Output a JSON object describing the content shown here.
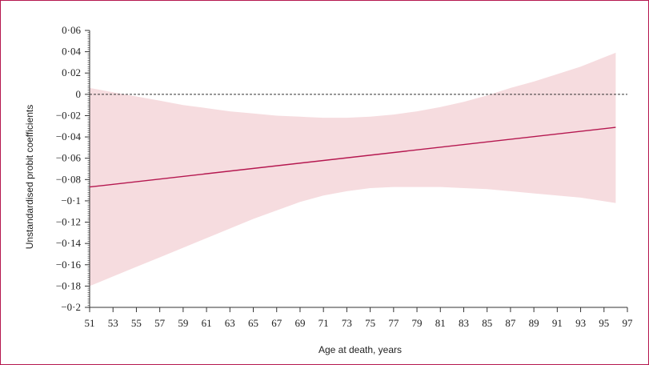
{
  "chart_data": {
    "type": "line",
    "title": "",
    "xlabel": "Age at death, years",
    "ylabel": "Unstandardised probit coefficients",
    "xlim": [
      51,
      97
    ],
    "ylim": [
      -0.2,
      0.06
    ],
    "xticks": [
      51,
      53,
      55,
      57,
      59,
      61,
      63,
      65,
      67,
      69,
      71,
      73,
      75,
      77,
      79,
      81,
      83,
      85,
      87,
      89,
      91,
      93,
      95,
      97
    ],
    "xtick_labels": [
      "51",
      "53",
      "55",
      "57",
      "59",
      "61",
      "63",
      "65",
      "67",
      "69",
      "71",
      "73",
      "75",
      "77",
      "79",
      "81",
      "83",
      "85",
      "87",
      "89",
      "91",
      "93",
      "95",
      "97"
    ],
    "yticks": [
      0.06,
      0.04,
      0.02,
      0,
      -0.02,
      -0.04,
      -0.06,
      -0.08,
      -0.1,
      -0.12,
      -0.14,
      -0.16,
      -0.18,
      -0.2
    ],
    "ytick_labels": [
      "0·06",
      "0·04",
      "0·02",
      "0",
      "−0·02",
      "−0·04",
      "−0·06",
      "−0·08",
      "−0·1",
      "−0·12",
      "−0·14",
      "−0·16",
      "−0·18",
      "−0·2"
    ],
    "reference_line": {
      "y": 0,
      "style": "dashed"
    },
    "series": [
      {
        "x": [
          51,
          96
        ],
        "y": [
          -0.087,
          -0.031
        ]
      }
    ],
    "confidence_band": {
      "x": [
        51,
        53,
        55,
        57,
        59,
        61,
        63,
        65,
        67,
        69,
        71,
        73,
        75,
        77,
        79,
        81,
        83,
        85,
        87,
        89,
        91,
        93,
        96
      ],
      "upper": [
        0.006,
        0.002,
        -0.002,
        -0.006,
        -0.01,
        -0.013,
        -0.016,
        -0.018,
        -0.02,
        -0.021,
        -0.022,
        -0.022,
        -0.021,
        -0.019,
        -0.016,
        -0.012,
        -0.007,
        -0.001,
        0.006,
        0.012,
        0.019,
        0.026,
        0.039
      ],
      "lower": [
        -0.18,
        -0.171,
        -0.162,
        -0.153,
        -0.144,
        -0.135,
        -0.126,
        -0.117,
        -0.109,
        -0.101,
        -0.095,
        -0.091,
        -0.088,
        -0.087,
        -0.087,
        -0.087,
        -0.088,
        -0.089,
        -0.091,
        -0.093,
        -0.095,
        -0.097,
        -0.102
      ]
    },
    "grid": false,
    "legend": "none",
    "colors": {
      "line": "#b5174f",
      "band": "#f6dcdf",
      "axis": "#333333",
      "reference": "#333333",
      "frame": "#b5174f"
    }
  }
}
